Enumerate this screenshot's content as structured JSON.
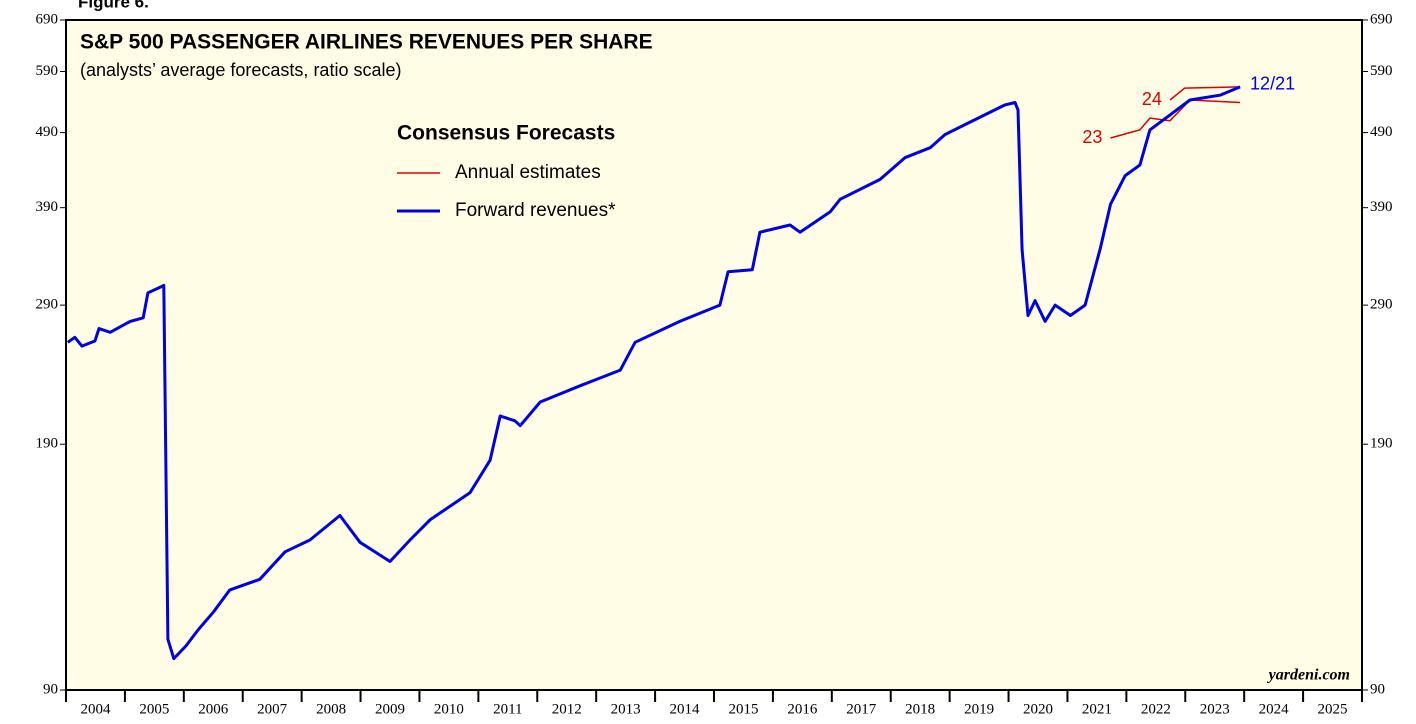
{
  "chart_data": {
    "type": "line",
    "figure_label": "Figure 6.",
    "title": "S&P 500 PASSENGER AIRLINES REVENUES PER SHARE",
    "subtitle": "(analysts’ average forecasts, ratio scale)",
    "legend_title": "Consensus Forecasts",
    "source": "yardeni.com",
    "log_scale": true,
    "ylim": [
      90,
      690
    ],
    "yticks": [
      90,
      190,
      290,
      390,
      490,
      590,
      690
    ],
    "xlim": [
      2004,
      2026
    ],
    "xticks": [
      2004,
      2005,
      2006,
      2007,
      2008,
      2009,
      2010,
      2011,
      2012,
      2013,
      2014,
      2015,
      2016,
      2017,
      2018,
      2019,
      2020,
      2021,
      2022,
      2023,
      2024,
      2025,
      2026
    ],
    "year_labels": [
      2004,
      2005,
      2006,
      2007,
      2008,
      2009,
      2010,
      2011,
      2012,
      2013,
      2014,
      2015,
      2016,
      2017,
      2018,
      2019,
      2020,
      2021,
      2022,
      2023,
      2024,
      2025
    ],
    "series": [
      {
        "name": "Annual estimates",
        "color": "#e00000",
        "label": "23",
        "x": [
          2021.73,
          2022.23,
          2022.4,
          2022.74,
          2023.08,
          2023.93
        ],
        "values": [
          482,
          494,
          512,
          508,
          541,
          537
        ]
      },
      {
        "name": "Annual estimates",
        "color": "#e00000",
        "label": "24",
        "x": [
          2022.74,
          2022.99,
          2023.93
        ],
        "values": [
          541,
          561,
          563
        ]
      },
      {
        "name": "Forward revenues*",
        "color": "#0000e6",
        "label": "12/21",
        "x": [
          2004.03,
          2004.15,
          2004.27,
          2004.49,
          2004.56,
          2004.75,
          2005.09,
          2005.31,
          2005.39,
          2005.63,
          2005.66,
          2005.73,
          2005.83,
          2006.04,
          2006.24,
          2006.5,
          2006.78,
          2007.29,
          2007.72,
          2008.14,
          2008.65,
          2008.99,
          2009.5,
          2009.84,
          2010.18,
          2010.86,
          2011.2,
          2011.37,
          2011.62,
          2011.71,
          2012.05,
          2012.73,
          2013.41,
          2013.66,
          2014.42,
          2015.1,
          2015.24,
          2015.65,
          2015.78,
          2016.29,
          2016.46,
          2016.97,
          2017.14,
          2017.82,
          2018.24,
          2018.67,
          2018.92,
          2019.26,
          2019.94,
          2020.11,
          2020.16,
          2020.23,
          2020.33,
          2020.45,
          2020.62,
          2020.79,
          2021.05,
          2021.3,
          2021.56,
          2021.73,
          2021.98,
          2022.23,
          2022.4,
          2022.74,
          2023.08,
          2023.59,
          2023.93
        ],
        "values": [
          259,
          263,
          256,
          260,
          270,
          267,
          276,
          279,
          301,
          307,
          308,
          105,
          99,
          103,
          108,
          114,
          122,
          126,
          137,
          142,
          153,
          141,
          133,
          142,
          151,
          164,
          181,
          207,
          204,
          201,
          216,
          227,
          238,
          259,
          276,
          290,
          321,
          323,
          362,
          370,
          362,
          385,
          400,
          425,
          454,
          468,
          487,
          502,
          533,
          537,
          525,
          343,
          281,
          294,
          276,
          290,
          281,
          290,
          345,
          394,
          430,
          444,
          494,
          517,
          541,
          549,
          563
        ]
      }
    ]
  }
}
